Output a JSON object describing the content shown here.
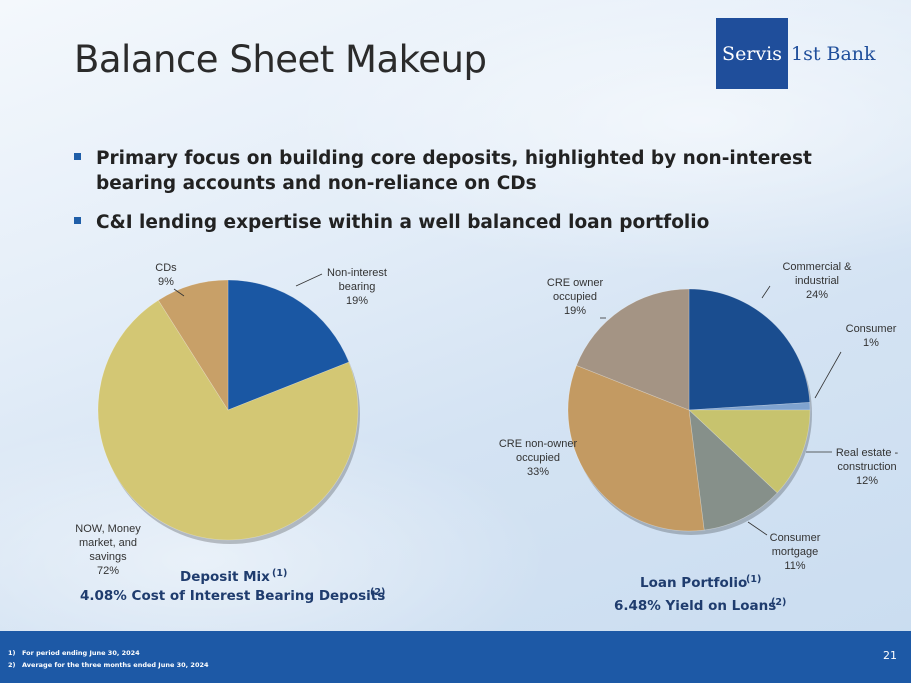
{
  "title": "Balance Sheet Makeup",
  "logo": {
    "box_text": "Servis",
    "text": "1st Bank"
  },
  "bullets": [
    "Primary focus on building core deposits, highlighted by non-interest bearing accounts and non-reliance on CDs",
    "C&I lending expertise within a well balanced loan portfolio"
  ],
  "chart_data": [
    {
      "type": "pie",
      "title": "Deposit Mix",
      "title_sup": "(1)",
      "subtitle": "4.08% Cost of Interest Bearing Deposits",
      "subtitle_sup": "(2)",
      "slices": [
        {
          "label": [
            "Non-interest",
            "bearing"
          ],
          "value": 19,
          "display": "19%",
          "color": "#1a57a3"
        },
        {
          "label": [
            "NOW, Money",
            "market, and",
            "savings"
          ],
          "value": 72,
          "display": "72%",
          "color": "#d3c774"
        },
        {
          "label": [
            "CDs"
          ],
          "value": 9,
          "display": "9%",
          "color": "#c8a068"
        }
      ]
    },
    {
      "type": "pie",
      "title": "Loan Portfolio",
      "title_sup": "(1)",
      "subtitle": "6.48% Yield on Loans",
      "subtitle_sup": "(2)",
      "slices": [
        {
          "label": [
            "Commercial &",
            "industrial"
          ],
          "value": 24,
          "display": "24%",
          "color": "#1a4d8f"
        },
        {
          "label": [
            "Consumer"
          ],
          "value": 1,
          "display": "1%",
          "color": "#7fa3cf"
        },
        {
          "label": [
            "Real estate -",
            "construction"
          ],
          "value": 12,
          "display": "12%",
          "color": "#c7c36e"
        },
        {
          "label": [
            "Consumer",
            "mortgage"
          ],
          "value": 11,
          "display": "11%",
          "color": "#86908a"
        },
        {
          "label": [
            "CRE non-owner",
            "occupied"
          ],
          "value": 33,
          "display": "33%",
          "color": "#c39a62"
        },
        {
          "label": [
            "CRE owner",
            "occupied"
          ],
          "value": 19,
          "display": "19%",
          "color": "#a49484"
        }
      ]
    }
  ],
  "footnotes": [
    {
      "num": "1)",
      "text": "For period ending June 30, 2024"
    },
    {
      "num": "2)",
      "text": "Average for the three months ended June 30, 2024"
    }
  ],
  "page_number": "21"
}
